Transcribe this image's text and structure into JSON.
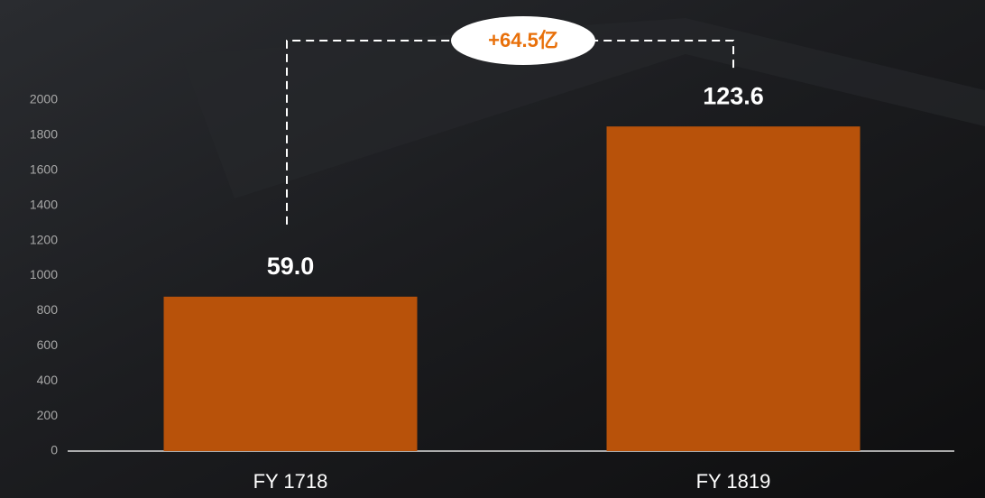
{
  "chart_data": {
    "type": "bar",
    "categories": [
      "FY 1718",
      "FY 1819"
    ],
    "values": [
      880,
      1850
    ],
    "color": "#b8520a",
    "ylim": [
      0,
      2000
    ],
    "yticks": [
      0,
      200,
      400,
      600,
      800,
      1000,
      1200,
      1400,
      1600,
      1800,
      2000
    ],
    "annotations": [
      "59.0",
      "123.6",
      "+64.5亿"
    ]
  }
}
